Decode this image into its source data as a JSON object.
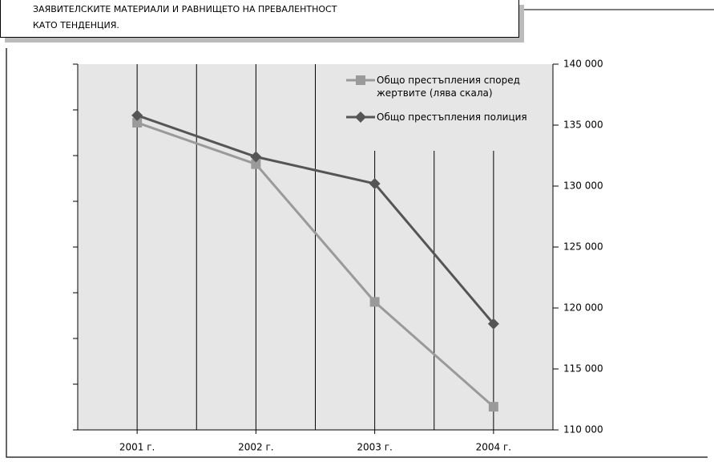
{
  "chart_data": {
    "type": "line",
    "note": [
      "ЗАЯВИТЕЛСКИТЕ МАТЕРИАЛИ И РАВНИЩЕТО НА ПРЕВАЛЕНТНОСТ",
      "КАТО ТЕНДЕНЦИЯ."
    ],
    "categories": [
      "2001 г.",
      "2002 г.",
      "2003 г.",
      "2004 г."
    ],
    "series": [
      {
        "name": "Общо престъпления според жертвите (лява скала)",
        "color": "#9a9a9a",
        "marker": "square",
        "axis": "y2",
        "values": [
          135200,
          131800,
          120500,
          111900
        ]
      },
      {
        "name": "Общо престъпления полиция",
        "color": "#555555",
        "marker": "diamond",
        "axis": "y2",
        "values": [
          135800,
          132400,
          130200,
          118700
        ]
      }
    ],
    "y2lim": [
      110000,
      140000
    ],
    "y2ticks": [
      {
        "value": 110000,
        "label": "110 000"
      },
      {
        "value": 115000,
        "label": "115 000"
      },
      {
        "value": 120000,
        "label": "120 000"
      },
      {
        "value": 125000,
        "label": "125 000"
      },
      {
        "value": 130000,
        "label": "130 000"
      },
      {
        "value": 135000,
        "label": "135 000"
      },
      {
        "value": 140000,
        "label": "140 000"
      }
    ],
    "legend": "upper right"
  }
}
